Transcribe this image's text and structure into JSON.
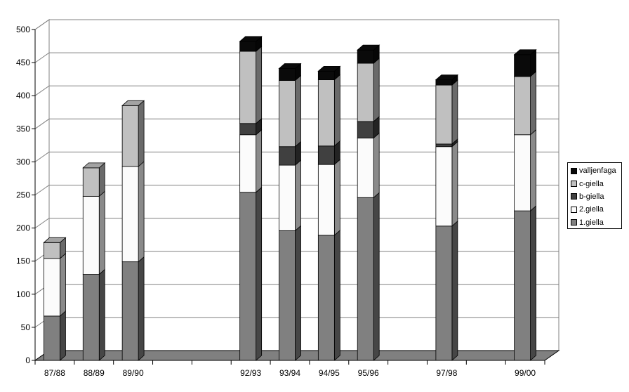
{
  "chart_data": {
    "type": "bar",
    "stacked": true,
    "three_d": true,
    "categories": [
      "87/88",
      "88/89",
      "89/90",
      "",
      "",
      "92/93",
      "93/94",
      "94/95",
      "95/96",
      "",
      "97/98",
      "",
      "99/00"
    ],
    "series": [
      {
        "name": "1.giella",
        "color": "#808080",
        "values": [
          67,
          130,
          149,
          0,
          0,
          254,
          196,
          189,
          246,
          0,
          203,
          0,
          226
        ]
      },
      {
        "name": "2.giella",
        "color": "#fbfbfb",
        "values": [
          87,
          118,
          144,
          0,
          0,
          87,
          99,
          107,
          90,
          0,
          120,
          0,
          115
        ]
      },
      {
        "name": "b-giella",
        "color": "#404040",
        "values": [
          0,
          0,
          0,
          0,
          0,
          17,
          28,
          28,
          25,
          0,
          4,
          0,
          0
        ]
      },
      {
        "name": "c-giella",
        "color": "#c0c0c0",
        "values": [
          24,
          43,
          92,
          0,
          0,
          109,
          100,
          100,
          88,
          0,
          89,
          0,
          88
        ]
      },
      {
        "name": "valljenfaga",
        "color": "#0a0a0a",
        "values": [
          0,
          0,
          0,
          0,
          0,
          15,
          18,
          13,
          20,
          0,
          8,
          0,
          33
        ]
      }
    ],
    "y_ticks": [
      "0",
      "50",
      "100",
      "150",
      "200",
      "250",
      "300",
      "350",
      "400",
      "450",
      "500"
    ],
    "ylim": [
      0,
      500
    ],
    "grid": true,
    "legend_position": "right"
  }
}
